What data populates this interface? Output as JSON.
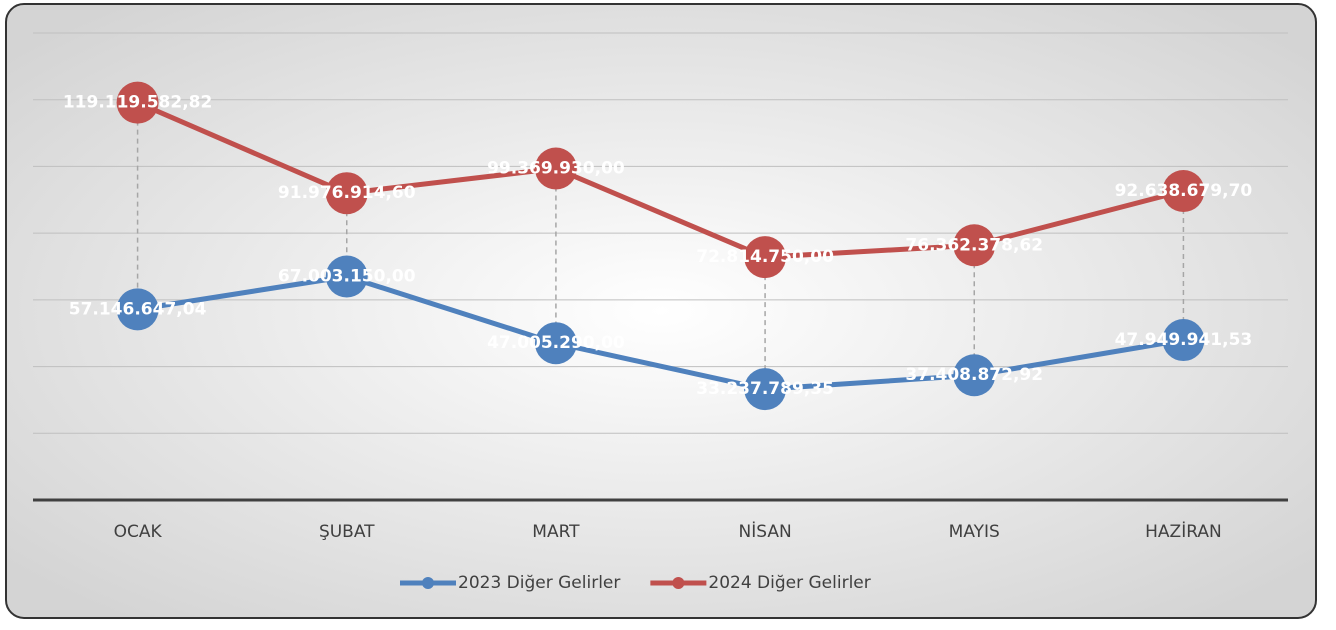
{
  "chart_data": {
    "type": "line",
    "categories": [
      "OCAK",
      "ŞUBAT",
      "MART",
      "NİSAN",
      "MAYIS",
      "HAZİRAN"
    ],
    "series": [
      {
        "name": "2023 Diğer Gelirler",
        "color": "#4f81bd",
        "values": [
          57146647.04,
          67003150,
          47005290,
          33237789.35,
          37408872.92,
          47949941.53
        ],
        "value_labels": [
          "57.146.647,04",
          "67.003.150,00",
          "47.005.290,00",
          "33.237.789,35",
          "37.408.872,92",
          "47.949.941,53"
        ]
      },
      {
        "name": "2024 Diğer Gelirler",
        "color": "#c0504d",
        "values": [
          119119582.82,
          91976914.6,
          99369930,
          72814750,
          76362378.62,
          92638679.7
        ],
        "value_labels": [
          "119.119.582,82",
          "91.976.914,60",
          "99.369.930,00",
          "72.814.750,00",
          "76.362.378,62",
          "92.638.679,70"
        ]
      }
    ],
    "ylim": [
      0,
      140000000
    ],
    "yticks": [
      0,
      20000000,
      40000000,
      60000000,
      80000000,
      100000000,
      120000000,
      140000000
    ],
    "grid": true,
    "legend": "bottom",
    "drop_lines": true
  }
}
